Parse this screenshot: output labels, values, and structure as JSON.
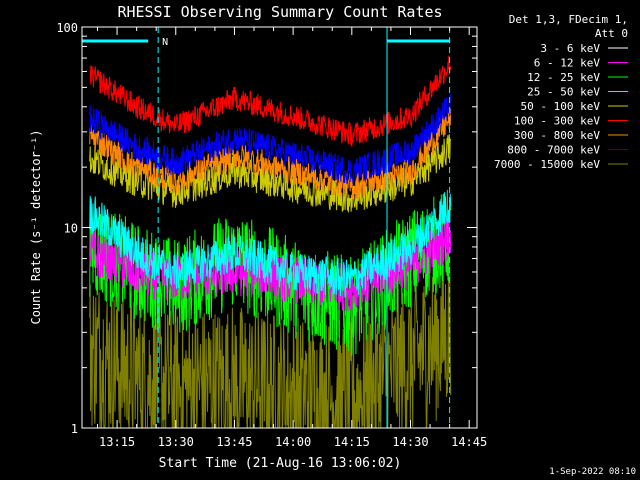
{
  "chart_data": {
    "type": "line",
    "title": "RHESSI Observing Summary Count Rates",
    "xlabel": "Start Time (21-Aug-16 13:06:02)",
    "ylabel": "Count Rate (s⁻¹ detector⁻¹)",
    "y_scale": "log",
    "ylim": [
      1,
      100
    ],
    "y_ticks": [
      "1",
      "10",
      "100"
    ],
    "x_range": [
      "13:06:02",
      "14:47:00"
    ],
    "x_ticks": [
      "13:15",
      "13:30",
      "13:45",
      "14:00",
      "14:15",
      "14:30",
      "14:45"
    ],
    "legend_header": [
      "Det 1,3, FDecim 1,",
      "Att 0"
    ],
    "timestamp": "1-Sep-2022 08:10",
    "color_accent_cyan": "#00ffff",
    "night_marker": {
      "label": "N",
      "start": "13:06:02",
      "end": "13:25:30"
    },
    "night_marker_right": {
      "start": "14:24:00",
      "end": "14:40:00"
    },
    "vertical_dashed_lines": [
      "13:25:30",
      "14:40:00"
    ],
    "vertical_solid_lines": [
      "14:24:00"
    ],
    "series": [
      {
        "name": "3 - 6 keV",
        "color": "#000000",
        "x": [
          "13:10",
          "13:20",
          "13:30",
          "13:45",
          "14:00",
          "14:15",
          "14:30",
          "14:40"
        ],
        "y": [
          2,
          1.5,
          1.4,
          1.3,
          1.2,
          1.3,
          2.5,
          3
        ]
      },
      {
        "name": "6 - 12 keV",
        "color": "#ff00ff",
        "x": [
          "13:08",
          "13:20",
          "13:30",
          "13:45",
          "14:00",
          "14:15",
          "14:30",
          "14:40"
        ],
        "y": [
          7.5,
          6,
          5.5,
          6,
          5.5,
          5,
          6.5,
          9
        ]
      },
      {
        "name": "12 - 25 keV",
        "color": "#00ff00",
        "x": [
          "13:08",
          "13:20",
          "13:30",
          "13:45",
          "14:00",
          "14:15",
          "14:30",
          "14:40"
        ],
        "y": [
          8,
          6,
          5,
          7,
          5,
          4,
          7,
          9
        ]
      },
      {
        "name": "25 - 50 keV",
        "color": "#00ffff",
        "x": [
          "13:08",
          "13:20",
          "13:30",
          "13:45",
          "14:00",
          "14:15",
          "14:30",
          "14:40"
        ],
        "y": [
          12,
          7.5,
          6,
          7.5,
          6,
          5.5,
          8,
          13
        ]
      },
      {
        "name": "50 - 100 keV",
        "color": "#cccc00",
        "x": [
          "13:08",
          "13:20",
          "13:30",
          "13:45",
          "14:00",
          "14:15",
          "14:30",
          "14:40"
        ],
        "y": [
          22,
          17,
          15,
          19,
          16,
          14,
          17,
          25
        ]
      },
      {
        "name": "100 - 300 keV",
        "color": "#ff0000",
        "x": [
          "13:08",
          "13:20",
          "13:30",
          "13:45",
          "14:00",
          "14:15",
          "14:30",
          "14:40"
        ],
        "y": [
          58,
          40,
          32,
          44,
          36,
          29,
          36,
          65
        ]
      },
      {
        "name": "300 - 800 keV",
        "color": "#ff8800",
        "x": [
          "13:08",
          "13:20",
          "13:30",
          "13:45",
          "14:00",
          "14:15",
          "14:30",
          "14:40"
        ],
        "y": [
          29,
          20,
          17,
          23,
          19,
          16,
          19,
          35
        ]
      },
      {
        "name": "800 - 7000 keV",
        "color": "#0000ff",
        "x": [
          "13:08",
          "13:20",
          "13:30",
          "13:45",
          "14:00",
          "14:15",
          "14:30",
          "14:40"
        ],
        "y": [
          35,
          25,
          21,
          28,
          23,
          19,
          24,
          40
        ]
      },
      {
        "name": "7000 - 15000 keV",
        "color": "#808000",
        "x": [
          "13:08",
          "13:20",
          "13:30",
          "13:45",
          "14:00",
          "14:15",
          "14:30",
          "14:40"
        ],
        "y": [
          2.5,
          1.8,
          1.6,
          1.7,
          1.5,
          1.4,
          2.2,
          3
        ]
      }
    ]
  }
}
